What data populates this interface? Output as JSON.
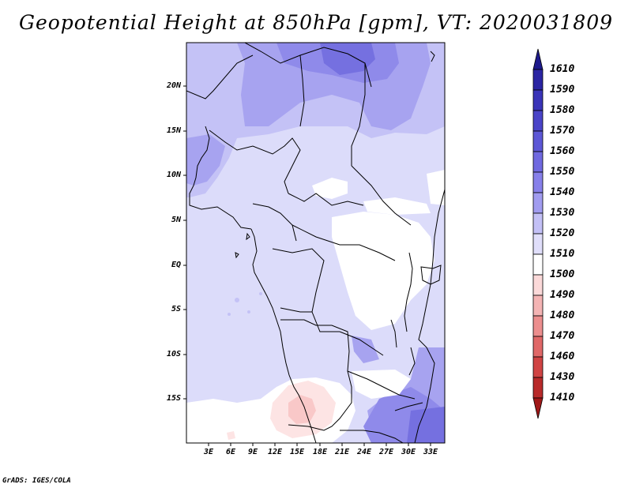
{
  "title": "Geopotential Height at 850hPa [gpm], VT: 2020031809",
  "credit": "GrADS: IGES/COLA",
  "lat_labels": [
    "20N",
    "15N",
    "10N",
    "5N",
    "EQ",
    "5S",
    "10S",
    "15S"
  ],
  "lon_labels": [
    "3E",
    "6E",
    "9E",
    "12E",
    "15E",
    "18E",
    "21E",
    "24E",
    "27E",
    "30E",
    "33E"
  ],
  "colorbar": {
    "levels": [
      "1610",
      "1590",
      "1580",
      "1570",
      "1560",
      "1550",
      "1540",
      "1530",
      "1520",
      "1510",
      "1500",
      "1490",
      "1480",
      "1470",
      "1460",
      "1430",
      "1410"
    ],
    "colors": [
      "#1e1a8c",
      "#2b25a3",
      "#3a34b8",
      "#4a44c8",
      "#5d57d6",
      "#7069e0",
      "#8780ea",
      "#a19cf0",
      "#c3c0f6",
      "#e0defa",
      "#ffffff",
      "#fbd9d9",
      "#f4b4b4",
      "#ec8e8e",
      "#e06868",
      "#d04444",
      "#b82a2a",
      "#a01818"
    ]
  }
}
